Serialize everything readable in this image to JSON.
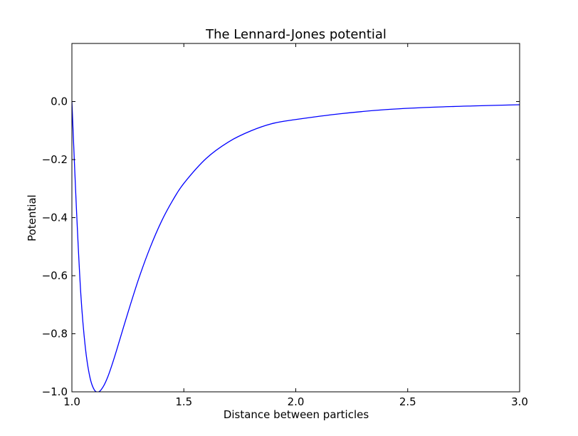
{
  "chart_data": {
    "type": "line",
    "title": "The Lennard-Jones potential",
    "xlabel": "Distance between particles",
    "ylabel": "Potential",
    "xlim": [
      1.0,
      3.0
    ],
    "ylim": [
      -1.0,
      0.2
    ],
    "grid": false,
    "x_ticks": [
      1.0,
      1.5,
      2.0,
      2.5,
      3.0
    ],
    "x_tick_labels": [
      "1.0",
      "1.5",
      "2.0",
      "2.5",
      "3.0"
    ],
    "y_ticks": [
      -1.0,
      -0.8,
      -0.6,
      -0.4,
      -0.2,
      0.0
    ],
    "y_tick_labels": [
      "−1.0",
      "−0.8",
      "−0.6",
      "−0.4",
      "−0.2",
      "0.0"
    ],
    "series": [
      {
        "color": "#0000ff",
        "x": [
          1.0,
          1.02,
          1.04,
          1.06,
          1.08,
          1.1,
          1.12,
          1.14,
          1.16,
          1.18,
          1.2,
          1.25,
          1.3,
          1.35,
          1.4,
          1.45,
          1.5,
          1.6,
          1.7,
          1.8,
          1.9,
          2.0,
          2.2,
          2.4,
          2.6,
          2.8,
          3.0
        ],
        "y": [
          0.0,
          -0.365,
          -0.665,
          -0.847,
          -0.948,
          -0.993,
          -1.0,
          -0.982,
          -0.949,
          -0.905,
          -0.856,
          -0.728,
          -0.607,
          -0.502,
          -0.413,
          -0.341,
          -0.282,
          -0.196,
          -0.139,
          -0.101,
          -0.075,
          -0.062,
          -0.042,
          -0.028,
          -0.02,
          -0.015,
          -0.011
        ]
      }
    ]
  }
}
